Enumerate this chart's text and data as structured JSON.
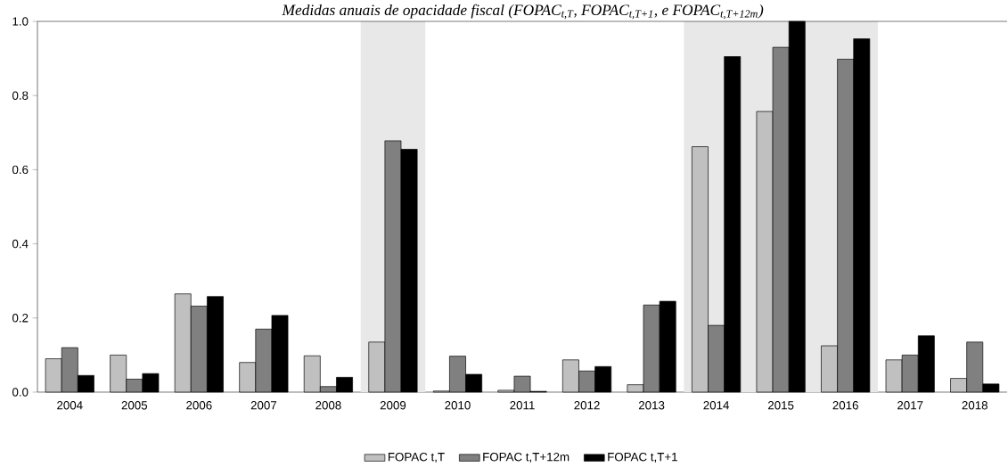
{
  "chart_data": {
    "type": "bar",
    "title": "Medidas anuais de opacidade fiscal (FOPAC$_{t,T}$, FOPAC$_{t,T+1}$, e FOPAC$_{t,T+12m}$)",
    "categories": [
      "2004",
      "2005",
      "2006",
      "2007",
      "2008",
      "2009",
      "2010",
      "2011",
      "2012",
      "2013",
      "2014",
      "2015",
      "2016",
      "2017",
      "2018"
    ],
    "series": [
      {
        "name": "FOPAC t,T",
        "color": "#c0c0c0",
        "values": [
          0.09,
          0.1,
          0.265,
          0.08,
          0.098,
          0.135,
          0.003,
          0.005,
          0.087,
          0.02,
          0.662,
          0.757,
          0.125,
          0.087,
          0.037
        ]
      },
      {
        "name": "FOPAC t,T+12m",
        "color": "#808080",
        "values": [
          0.12,
          0.035,
          0.232,
          0.17,
          0.015,
          0.678,
          0.097,
          0.043,
          0.057,
          0.235,
          0.18,
          0.93,
          0.898,
          0.1,
          0.135
        ]
      },
      {
        "name": "FOPAC t,T+1",
        "color": "#000000",
        "values": [
          0.045,
          0.05,
          0.258,
          0.207,
          0.04,
          0.655,
          0.048,
          0.002,
          0.069,
          0.245,
          0.905,
          1.0,
          0.953,
          0.152,
          0.022
        ]
      }
    ],
    "ylim": [
      0,
      1
    ],
    "yticks": [
      {
        "value": 0,
        "label": "0.0"
      },
      0.2,
      0.4,
      0.6,
      0.8,
      {
        "value": 1,
        "label": "1.0"
      }
    ],
    "bands": [
      {
        "axis": "x",
        "from": "2009",
        "to": "2009",
        "color": "#e8e8e8"
      },
      {
        "axis": "x",
        "from": "2014",
        "to": "2016",
        "color": "#e8e8e8"
      }
    ],
    "grid": false,
    "legend": "bottom"
  }
}
